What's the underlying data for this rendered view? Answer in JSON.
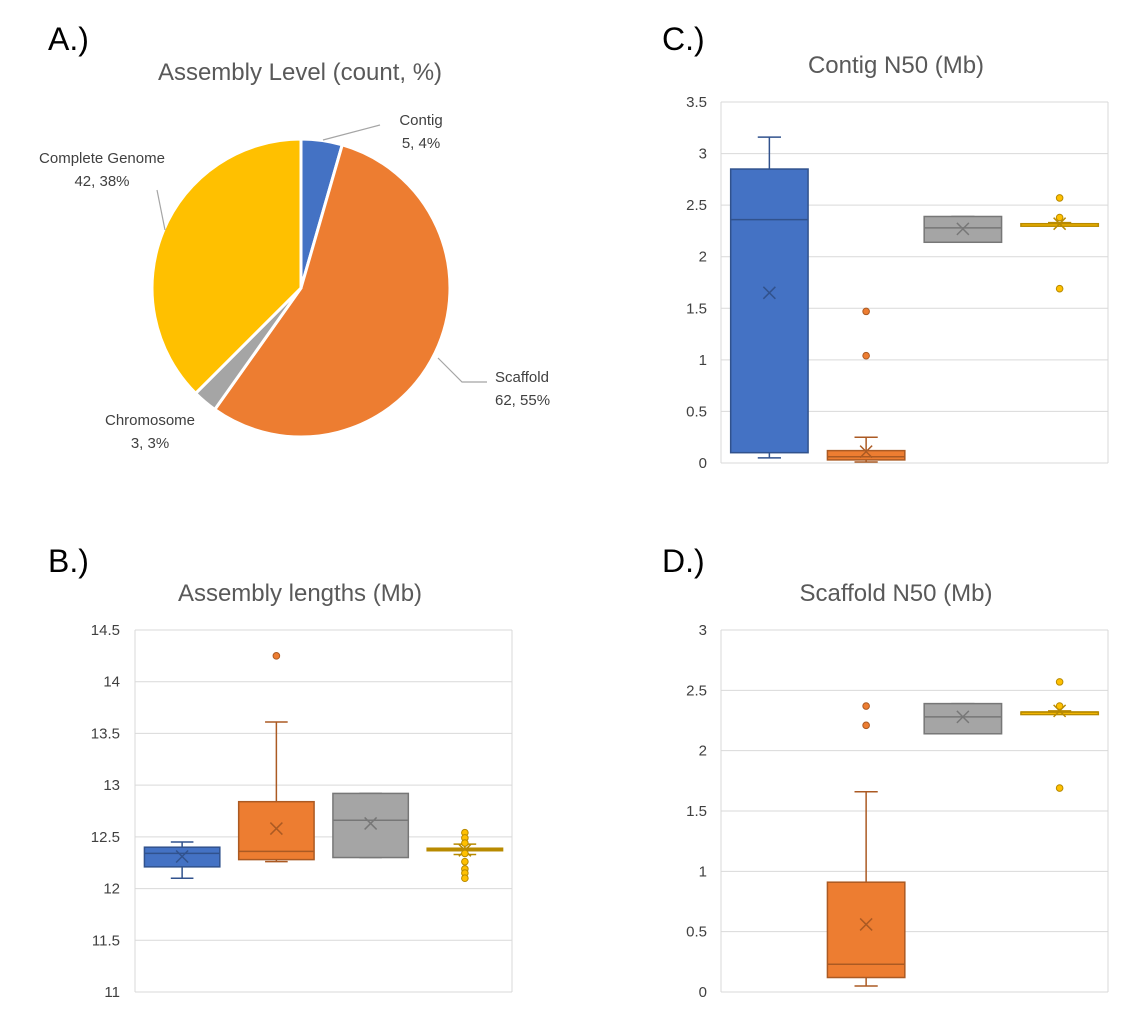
{
  "colors": {
    "Contig": "#4472C4",
    "Scaffold": "#ED7D31",
    "Chromosome": "#A5A5A5",
    "Complete Genome": "#FFC000"
  },
  "panel_labels": [
    "A.)",
    "B.)",
    "C.)",
    "D.)"
  ],
  "chart_data": [
    {
      "panel": "A.)",
      "type": "pie",
      "title": "Assembly Level (count, %)",
      "slices": [
        {
          "name": "Contig",
          "value": 5,
          "percent_label": "4%"
        },
        {
          "name": "Scaffold",
          "value": 62,
          "percent_label": "55%"
        },
        {
          "name": "Chromosome",
          "value": 3,
          "percent_label": "3%"
        },
        {
          "name": "Complete Genome",
          "value": 42,
          "percent_label": "38%"
        }
      ]
    },
    {
      "panel": "B.)",
      "type": "box",
      "title": "Assembly lengths (Mb)",
      "ylim": [
        11,
        14.5
      ],
      "yticks": [
        "11",
        "11.5",
        "12",
        "12.5",
        "13",
        "13.5",
        "14",
        "14.5"
      ],
      "grid": true,
      "series": [
        {
          "color_key": "Contig",
          "min": 12.1,
          "q1": 12.21,
          "median": 12.34,
          "q3": 12.4,
          "max": 12.45,
          "mean": 12.31,
          "outliers": []
        },
        {
          "color_key": "Scaffold",
          "min": 12.26,
          "q1": 12.28,
          "median": 12.36,
          "q3": 12.84,
          "max": 13.61,
          "mean": 12.58,
          "outliers": [
            14.25
          ]
        },
        {
          "color_key": "Chromosome",
          "min": 12.3,
          "q1": 12.3,
          "median": 12.66,
          "q3": 12.92,
          "max": 12.92,
          "mean": 12.63,
          "outliers": []
        },
        {
          "color_key": "Complete Genome",
          "min": 12.33,
          "q1": 12.37,
          "median": 12.38,
          "q3": 12.39,
          "max": 12.43,
          "mean": 12.37,
          "outliers": [
            12.54,
            12.49,
            12.44,
            12.34,
            12.26,
            12.19,
            12.15,
            12.1
          ]
        }
      ]
    },
    {
      "panel": "C.)",
      "type": "box",
      "title": "Contig N50 (Mb)",
      "ylim": [
        0,
        3.5
      ],
      "yticks": [
        "0",
        "0.5",
        "1",
        "1.5",
        "2",
        "2.5",
        "3",
        "3.5"
      ],
      "grid": true,
      "series": [
        {
          "color_key": "Contig",
          "min": 0.05,
          "q1": 0.1,
          "median": 2.36,
          "q3": 2.85,
          "max": 3.16,
          "mean": 1.65,
          "outliers": []
        },
        {
          "color_key": "Scaffold",
          "min": 0.01,
          "q1": 0.03,
          "median": 0.06,
          "q3": 0.12,
          "max": 0.25,
          "mean": 0.11,
          "outliers": [
            1.47,
            1.04
          ]
        },
        {
          "color_key": "Chromosome",
          "min": 2.14,
          "q1": 2.14,
          "median": 2.28,
          "q3": 2.39,
          "max": 2.39,
          "mean": 2.27,
          "outliers": []
        },
        {
          "color_key": "Complete Genome",
          "min": 2.31,
          "q1": 2.31,
          "median": 2.32,
          "q3": 2.32,
          "max": 2.33,
          "mean": 2.32,
          "outliers": [
            2.57,
            2.38,
            1.69
          ]
        }
      ]
    },
    {
      "panel": "D.)",
      "type": "box",
      "title": "Scaffold N50 (Mb)",
      "ylim": [
        0,
        3
      ],
      "yticks": [
        "0",
        "0.5",
        "1",
        "1.5",
        "2",
        "2.5",
        "3"
      ],
      "grid": true,
      "series": [
        {
          "color_key": "Contig",
          "empty": true
        },
        {
          "color_key": "Scaffold",
          "min": 0.05,
          "q1": 0.12,
          "median": 0.23,
          "q3": 0.91,
          "max": 1.66,
          "mean": 0.56,
          "outliers": [
            2.37,
            2.21
          ]
        },
        {
          "color_key": "Chromosome",
          "min": 2.14,
          "q1": 2.14,
          "median": 2.28,
          "q3": 2.39,
          "max": 2.39,
          "mean": 2.28,
          "outliers": []
        },
        {
          "color_key": "Complete Genome",
          "min": 2.31,
          "q1": 2.31,
          "median": 2.32,
          "q3": 2.32,
          "max": 2.33,
          "mean": 2.33,
          "outliers": [
            2.57,
            2.37,
            1.69
          ]
        }
      ]
    }
  ]
}
